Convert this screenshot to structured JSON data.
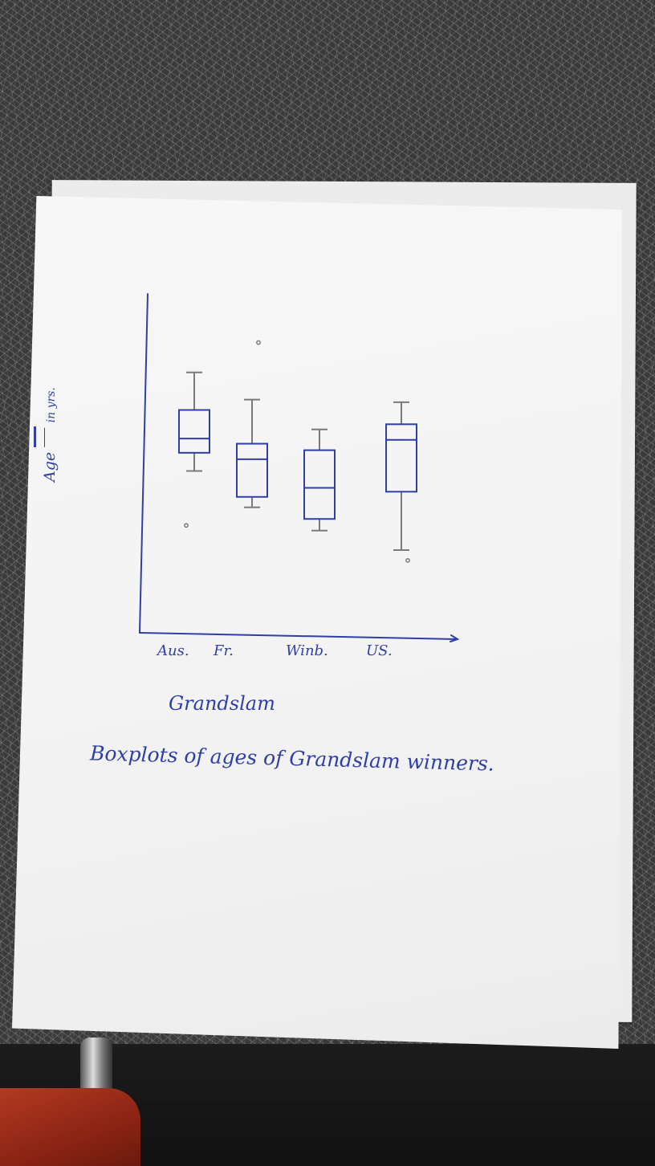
{
  "chart_data": {
    "type": "boxplot",
    "title": "Boxplots of ages of Grandslam winners.",
    "xlabel": "Grandslam",
    "ylabel": "Age ___ in yrs.",
    "categories": [
      "Aus.",
      "Fr.",
      "Winb.",
      "US."
    ],
    "series": [
      {
        "name": "",
        "boxes": [
          {
            "category": "Aus.",
            "whisker_low": 22.6,
            "q1": 24.0,
            "median": 25.1,
            "q3": 27.3,
            "whisker_high": 30.2,
            "outliers": [
              18.4
            ]
          },
          {
            "category": "Fr.",
            "whisker_low": 19.8,
            "q1": 20.6,
            "median": 23.5,
            "q3": 24.7,
            "whisker_high": 28.1,
            "outliers": [
              32.5
            ]
          },
          {
            "category": "Winb.",
            "whisker_low": 18.0,
            "q1": 18.9,
            "median": 21.3,
            "q3": 24.2,
            "whisker_high": 25.8,
            "outliers": []
          },
          {
            "category": "US.",
            "whisker_low": 16.5,
            "q1": 21.0,
            "median": 25.0,
            "q3": 26.2,
            "whisker_high": 27.9,
            "outliers": [
              15.7
            ]
          }
        ]
      }
    ],
    "ylim": [
      10,
      36
    ],
    "grid": false,
    "legend": "none",
    "colors": {
      "box": "#2f3fa6",
      "whisker": "#7a7a7a",
      "axis": "#2f3fa6"
    }
  }
}
